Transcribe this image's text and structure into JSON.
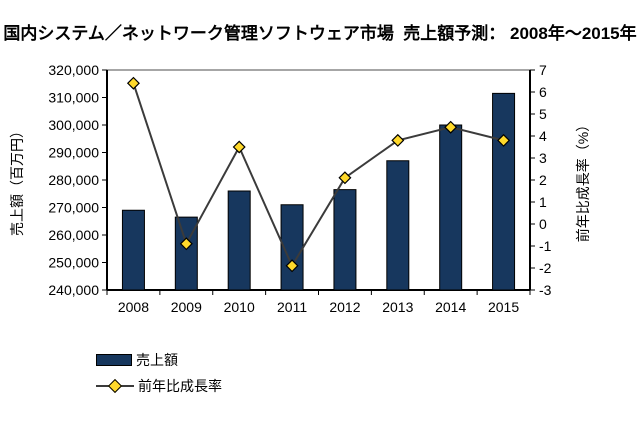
{
  "title": "国内システム／ネットワーク管理ソフトウェア市場  売上額予測： 2008年～2015年",
  "chart_data": {
    "type": "bar",
    "subtype": "bar-line-combo",
    "categories": [
      "2008",
      "2009",
      "2010",
      "2011",
      "2012",
      "2013",
      "2014",
      "2015"
    ],
    "series": [
      {
        "name": "売上額",
        "type": "bar",
        "axis": "left",
        "values": [
          269000,
          266500,
          276000,
          271000,
          276500,
          287000,
          300000,
          311500
        ]
      },
      {
        "name": "前年比成長率",
        "type": "line",
        "axis": "right",
        "values": [
          6.4,
          -0.9,
          3.5,
          -1.9,
          2.1,
          3.8,
          4.4,
          3.8
        ]
      }
    ],
    "left_axis": {
      "title": "売上額（百万円）",
      "min": 240000,
      "max": 320000,
      "tick_labels": [
        "240,000",
        "250,000",
        "260,000",
        "270,000",
        "280,000",
        "290,000",
        "300,000",
        "310,000",
        "320,000"
      ]
    },
    "right_axis": {
      "title": "前年比成長率（%）",
      "min": -3,
      "max": 7,
      "tick_labels": [
        "-3",
        "-2",
        "-1",
        "0",
        "1",
        "2",
        "3",
        "4",
        "5",
        "6",
        "7"
      ]
    },
    "grid": "top-border-line-only",
    "legend_position": "bottom-left"
  },
  "legend": {
    "sales": "売上額",
    "growth": "前年比成長率"
  },
  "colors": {
    "bar_fill": "#17375E",
    "bar_border": "#000000",
    "line": "#3B3B3B",
    "marker_fill": "#FFD92B",
    "marker_border": "#000000",
    "top_gridline": "#A6A6A6",
    "axis": "#000000"
  }
}
